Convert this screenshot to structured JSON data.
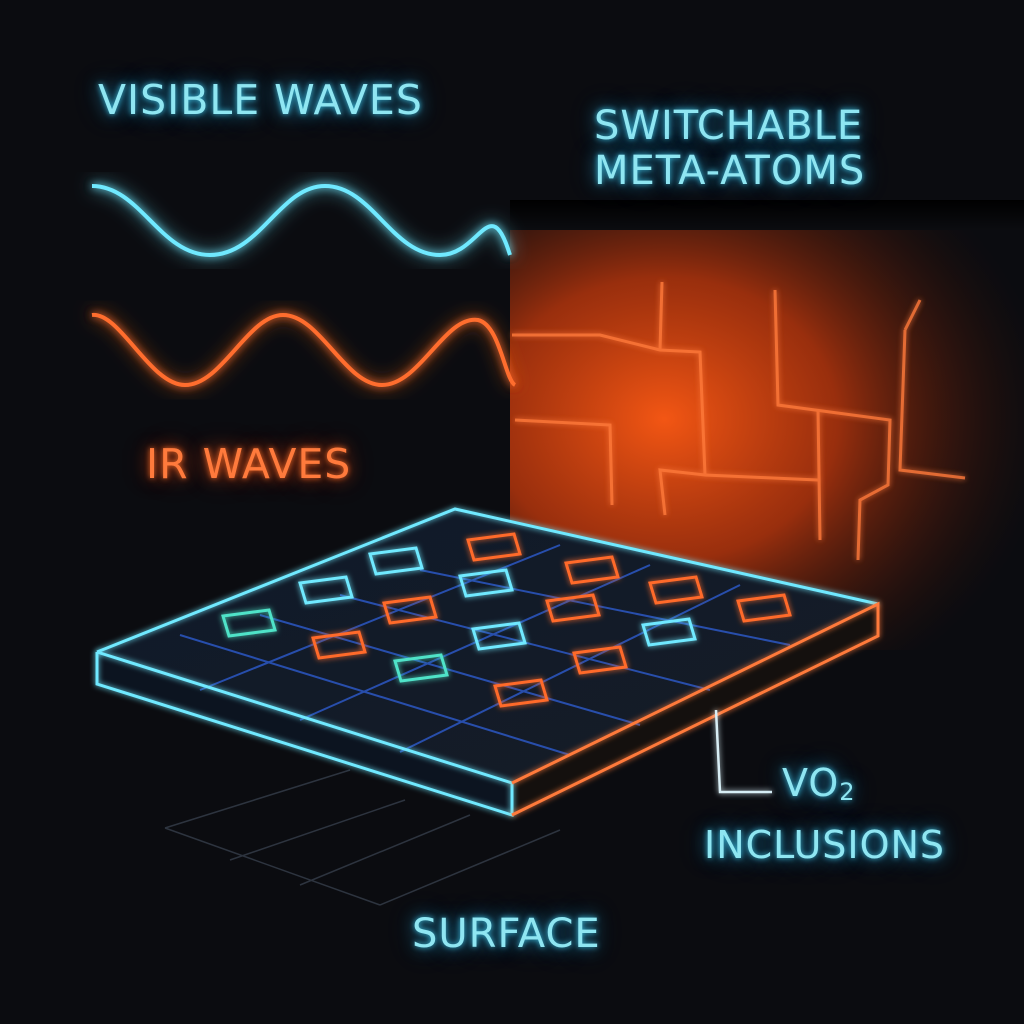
{
  "labels": {
    "visible_waves": "VISIBLE WAVES",
    "ir_waves": "IR WAVES",
    "switchable_line1": "SWITCHABLE",
    "switchable_line2": "META-ATOMS",
    "vo2_main": "VO",
    "vo2_sub": "2",
    "inclusions": "INCLUSIONS",
    "surface": "SURFACE"
  },
  "colors": {
    "background": "#0b0c10",
    "cyan_glow": "#3fd6f0",
    "orange_glow": "#ff6a2a",
    "grid_blue": "#2f5fd8",
    "teal_atom": "#4fe3c8"
  },
  "meta_atoms": [
    {
      "state": "cyan"
    },
    {
      "state": "orange"
    },
    {
      "state": "cyan"
    },
    {
      "state": "orange"
    },
    {
      "state": "orange"
    },
    {
      "state": "cyan"
    },
    {
      "state": "orange"
    },
    {
      "state": "orange"
    },
    {
      "state": "teal"
    },
    {
      "state": "orange"
    },
    {
      "state": "cyan"
    },
    {
      "state": "cyan"
    },
    {
      "state": "orange"
    },
    {
      "state": "teal"
    },
    {
      "state": "orange"
    },
    {
      "state": "orange"
    }
  ]
}
